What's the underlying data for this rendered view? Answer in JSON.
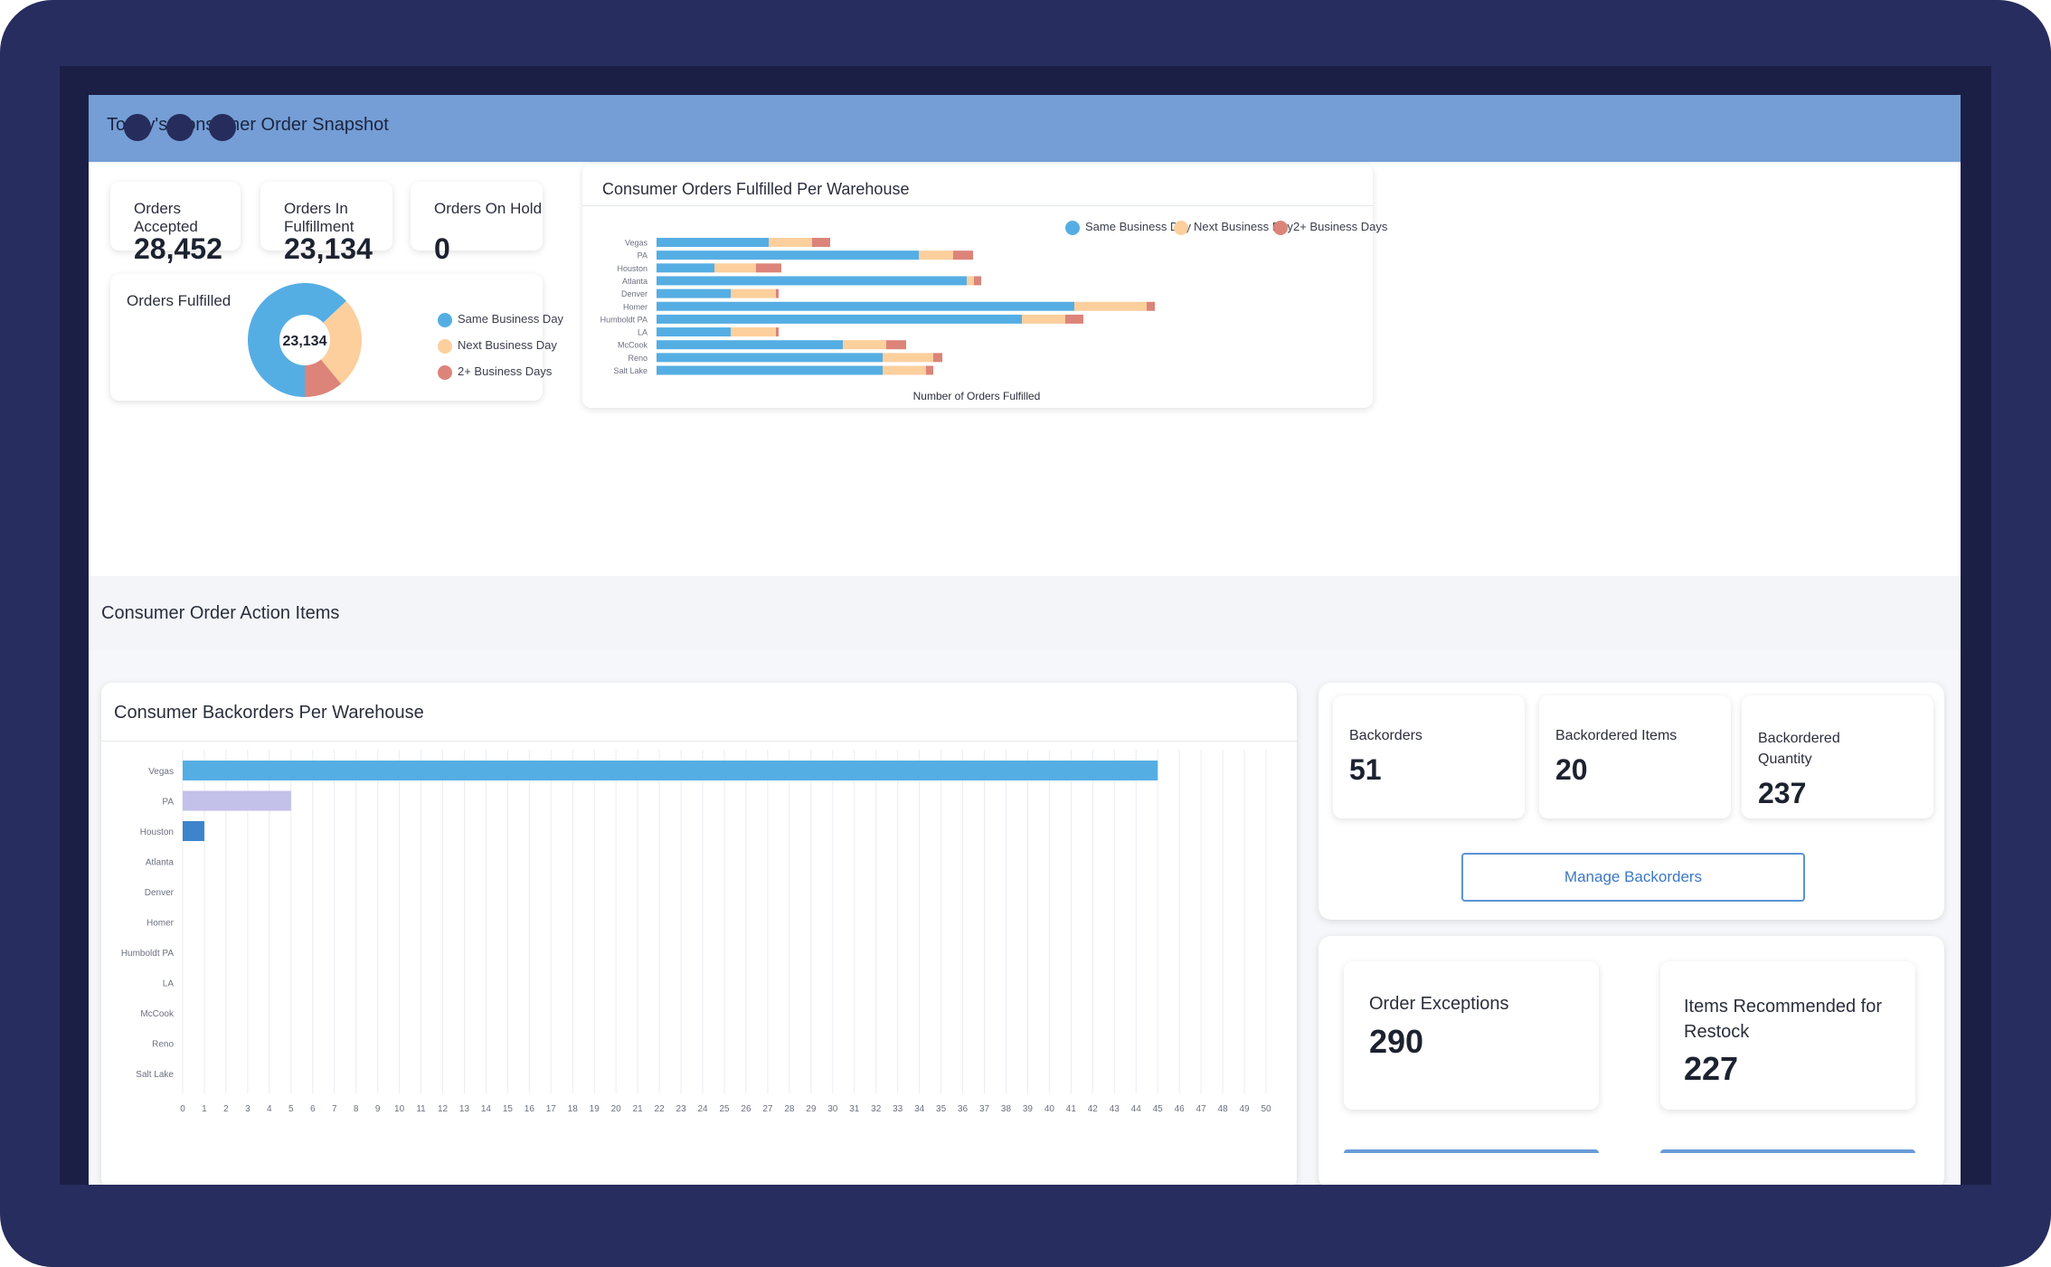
{
  "snapshot": {
    "title": "Today's Consumer Order Snapshot",
    "kpis": [
      {
        "label": "Orders Accepted",
        "value": "28,452"
      },
      {
        "label": "Orders In Fulfillment",
        "value": "23,134"
      },
      {
        "label": "Orders On Hold",
        "value": "0"
      }
    ],
    "orders_fulfilled": {
      "label": "Orders Fulfilled",
      "center_value": "23,134",
      "legend": [
        "Same Business Day",
        "Next Business Day",
        "2+ Business Days"
      ]
    },
    "warehouse_chart": {
      "title": "Consumer Orders Fulfilled Per Warehouse",
      "xlabel": "Number of Orders Fulfilled",
      "legend": [
        "Same Business Day",
        "Next Business Day",
        "2+ Business Days"
      ]
    }
  },
  "action_items": {
    "title": "Consumer Order Action Items",
    "backorders_chart": {
      "title": "Consumer Backorders Per Warehouse"
    },
    "kpis": [
      {
        "label": "Backorders",
        "value": "51"
      },
      {
        "label": "Backordered Items",
        "value": "20"
      },
      {
        "label": "Backordered Quantity",
        "value": "237"
      }
    ],
    "manage_button": "Manage Backorders",
    "order_exceptions": {
      "label": "Order Exceptions",
      "value": "290"
    },
    "restock": {
      "label": "Items Recommended for Restock",
      "value": "227"
    }
  },
  "colors": {
    "same_day": "#55aee3",
    "next_day": "#fccf9c",
    "two_plus": "#dc8479",
    "topbar": "#749ed5",
    "frame": "#272d5e"
  },
  "chart_data": [
    {
      "type": "pie",
      "title": "Orders Fulfilled",
      "categories": [
        "Same Business Day",
        "Next Business Day",
        "2+ Business Days"
      ],
      "values": [
        63,
        26,
        11
      ]
    },
    {
      "type": "bar",
      "orientation": "horizontal",
      "stacked": true,
      "title": "Consumer Orders Fulfilled Per Warehouse",
      "categories": [
        "Vegas",
        "PA",
        "Houston",
        "Atlanta",
        "Denver",
        "Homer",
        "Humboldt PA",
        "LA",
        "McCook",
        "Reno",
        "Salt Lake"
      ],
      "xlabel": "Number of Orders Fulfilled",
      "series": [
        {
          "name": "Same Business Day",
          "values": [
            124,
            290,
            64,
            343,
            82,
            462,
            404,
            82,
            206,
            250,
            250
          ]
        },
        {
          "name": "Next Business Day",
          "values": [
            48,
            38,
            46,
            8,
            50,
            80,
            48,
            50,
            48,
            56,
            48
          ]
        },
        {
          "name": "2+ Business Days",
          "values": [
            20,
            22,
            28,
            8,
            3,
            9,
            20,
            3,
            22,
            10,
            8
          ]
        }
      ],
      "legend_position": "top-right"
    },
    {
      "type": "bar",
      "orientation": "horizontal",
      "title": "Consumer Backorders Per Warehouse",
      "categories": [
        "Vegas",
        "PA",
        "Houston",
        "Atlanta",
        "Denver",
        "Homer",
        "Humboldt PA",
        "LA",
        "McCook",
        "Reno",
        "Salt Lake"
      ],
      "values": [
        45,
        5,
        1,
        0,
        0,
        0,
        0,
        0,
        0,
        0,
        0
      ],
      "bar_colors": [
        "#55aee3",
        "#c3c1ea",
        "#3d84cc"
      ],
      "xlim": [
        0,
        50
      ],
      "xticks": [
        "0",
        "1",
        "2",
        "3",
        "4",
        "5",
        "6",
        "7",
        "8",
        "9",
        "10",
        "11",
        "12",
        "13",
        "14",
        "15",
        "16",
        "17",
        "18",
        "19",
        "20",
        "21",
        "22",
        "23",
        "24",
        "25",
        "26",
        "27",
        "28",
        "29",
        "30",
        "31",
        "32",
        "33",
        "34",
        "35",
        "36",
        "37",
        "38",
        "39",
        "40",
        "41",
        "42",
        "43",
        "44",
        "45",
        "46",
        "47",
        "48",
        "49",
        "50"
      ],
      "grid": true
    }
  ]
}
